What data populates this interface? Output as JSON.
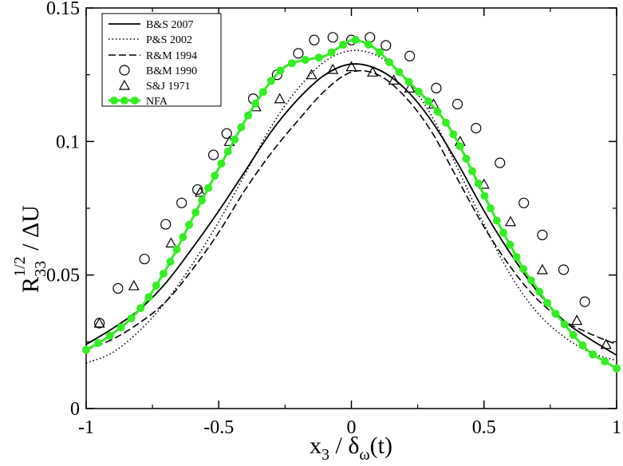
{
  "chart_data": {
    "type": "line",
    "xlim": [
      -1,
      1
    ],
    "ylim": [
      0,
      0.15
    ],
    "x_ticks": [
      "-1",
      "-0.5",
      "0",
      "0.5",
      "1"
    ],
    "x_tick_values": [
      -1,
      -0.5,
      0,
      0.5,
      1
    ],
    "y_ticks": [
      "0",
      "0.05",
      "0.1",
      "0.15"
    ],
    "y_tick_values": [
      0,
      0.05,
      0.1,
      0.15
    ],
    "ylabel": {
      "main": "R",
      "sub": "33",
      "sup": "1/2",
      "tail": " / ΔU"
    },
    "xlabel": {
      "main": "x",
      "sub": "3",
      "tail": " / δ",
      "sub2": "ω",
      "end": "(t)"
    },
    "legend_position": "top-left",
    "series": [
      {
        "name": "B&S 2007",
        "style": "solid",
        "color": "#000000",
        "x": [
          -1,
          -0.9,
          -0.8,
          -0.7,
          -0.6,
          -0.5,
          -0.4,
          -0.3,
          -0.2,
          -0.1,
          0,
          0.1,
          0.2,
          0.3,
          0.4,
          0.5,
          0.6,
          0.7,
          0.8,
          0.9,
          1
        ],
        "y": [
          0.024,
          0.03,
          0.037,
          0.047,
          0.06,
          0.074,
          0.089,
          0.104,
          0.116,
          0.125,
          0.129,
          0.127,
          0.12,
          0.108,
          0.092,
          0.074,
          0.058,
          0.044,
          0.033,
          0.026,
          0.02
        ]
      },
      {
        "name": "P&S 2002",
        "style": "dotted",
        "color": "#000000",
        "x": [
          -1,
          -0.9,
          -0.8,
          -0.7,
          -0.6,
          -0.5,
          -0.4,
          -0.3,
          -0.2,
          -0.1,
          0,
          0.1,
          0.2,
          0.3,
          0.4,
          0.5,
          0.6,
          0.7,
          0.8,
          0.9,
          1
        ],
        "y": [
          0.017,
          0.021,
          0.029,
          0.04,
          0.054,
          0.07,
          0.088,
          0.106,
          0.12,
          0.13,
          0.134,
          0.132,
          0.124,
          0.11,
          0.09,
          0.069,
          0.05,
          0.036,
          0.027,
          0.021,
          0.018
        ]
      },
      {
        "name": "R&M 1994",
        "style": "dashed",
        "color": "#000000",
        "x": [
          -1,
          -0.9,
          -0.8,
          -0.7,
          -0.6,
          -0.5,
          -0.4,
          -0.3,
          -0.2,
          -0.1,
          0,
          0.1,
          0.2,
          0.3,
          0.4,
          0.5,
          0.6,
          0.7,
          0.8,
          0.9,
          1
        ],
        "y": [
          0.022,
          0.026,
          0.032,
          0.04,
          0.052,
          0.066,
          0.082,
          0.096,
          0.108,
          0.119,
          0.126,
          0.125,
          0.117,
          0.104,
          0.086,
          0.068,
          0.053,
          0.041,
          0.033,
          0.028,
          0.024
        ]
      },
      {
        "name": "B&M 1990",
        "style": "circle-markers",
        "color": "#000000",
        "x": [
          -0.95,
          -0.88,
          -0.78,
          -0.7,
          -0.64,
          -0.58,
          -0.52,
          -0.47,
          -0.37,
          -0.28,
          -0.2,
          -0.14,
          -0.07,
          0,
          0.07,
          0.13,
          0.22,
          0.32,
          0.4,
          0.47,
          0.56,
          0.65,
          0.72,
          0.8,
          0.88
        ],
        "y": [
          0.032,
          0.045,
          0.056,
          0.069,
          0.077,
          0.082,
          0.095,
          0.103,
          0.116,
          0.125,
          0.133,
          0.138,
          0.139,
          0.138,
          0.139,
          0.136,
          0.132,
          0.12,
          0.114,
          0.105,
          0.092,
          0.077,
          0.065,
          0.052,
          0.04
        ]
      },
      {
        "name": "S&J 1971",
        "style": "triangle-markers",
        "color": "#000000",
        "x": [
          -0.95,
          -0.82,
          -0.68,
          -0.57,
          -0.46,
          -0.36,
          -0.27,
          -0.15,
          -0.07,
          0,
          0.08,
          0.16,
          0.22,
          0.31,
          0.41,
          0.5,
          0.6,
          0.72,
          0.85,
          0.96
        ],
        "y": [
          0.032,
          0.046,
          0.062,
          0.081,
          0.1,
          0.113,
          0.116,
          0.125,
          0.127,
          0.128,
          0.126,
          0.123,
          0.12,
          0.114,
          0.1,
          0.084,
          0.07,
          0.052,
          0.033,
          0.024
        ]
      },
      {
        "name": "NFA",
        "style": "solid-thick-dots",
        "color": "#33ee22",
        "x": [
          -1,
          -0.9,
          -0.8,
          -0.7,
          -0.6,
          -0.5,
          -0.45,
          -0.4,
          -0.35,
          -0.3,
          -0.25,
          -0.2,
          -0.15,
          -0.1,
          -0.05,
          0,
          0.05,
          0.1,
          0.15,
          0.2,
          0.25,
          0.3,
          0.35,
          0.4,
          0.45,
          0.5,
          0.55,
          0.6,
          0.65,
          0.7,
          0.75,
          0.8,
          0.85,
          0.9,
          0.95,
          1
        ],
        "y": [
          0.022,
          0.028,
          0.037,
          0.052,
          0.071,
          0.09,
          0.099,
          0.108,
          0.116,
          0.123,
          0.128,
          0.13,
          0.131,
          0.132,
          0.135,
          0.138,
          0.137,
          0.134,
          0.129,
          0.124,
          0.119,
          0.114,
          0.108,
          0.1,
          0.09,
          0.08,
          0.07,
          0.061,
          0.052,
          0.045,
          0.038,
          0.032,
          0.026,
          0.021,
          0.018,
          0.015
        ]
      }
    ]
  }
}
